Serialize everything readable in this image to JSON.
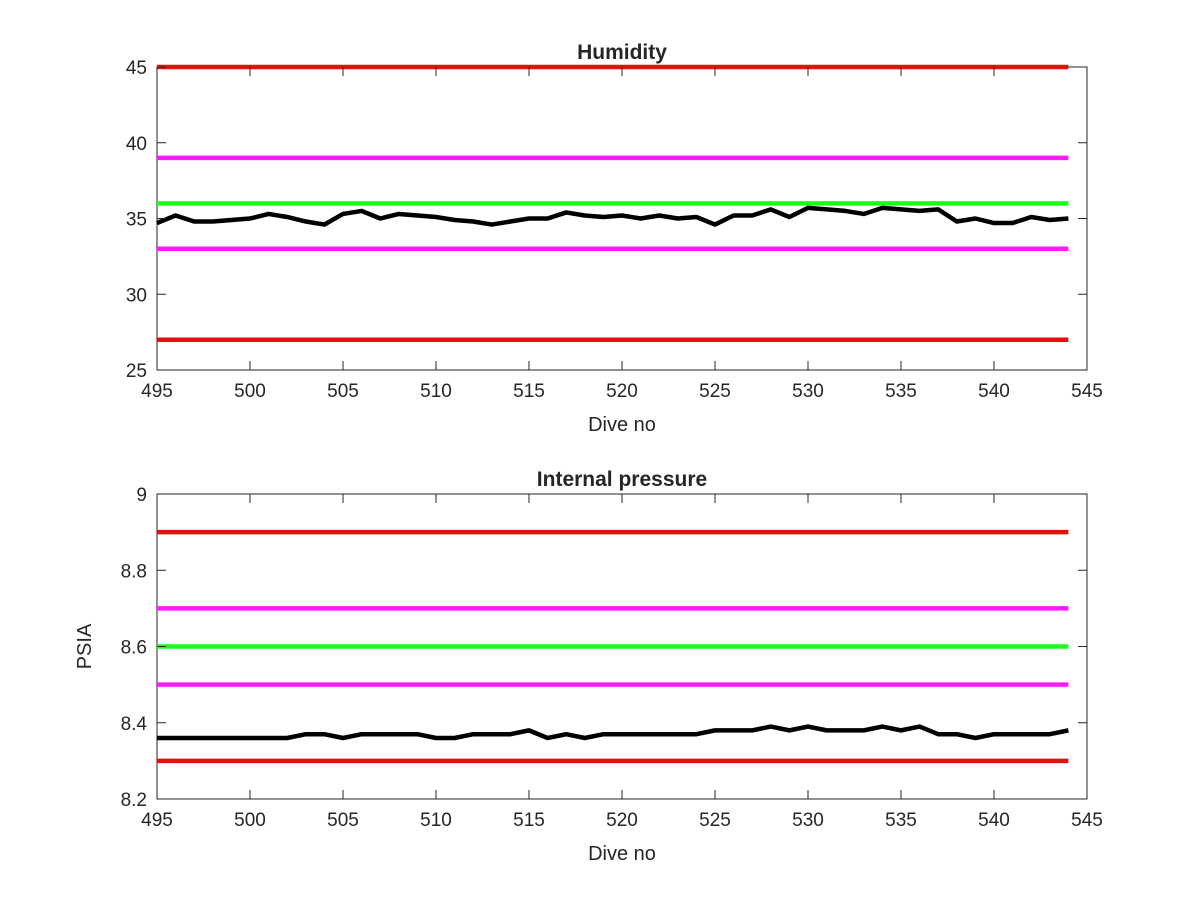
{
  "chart_data": [
    {
      "type": "line",
      "title": "Humidity",
      "xlabel": "Dive no",
      "ylabel": "",
      "xlim": [
        495,
        545
      ],
      "ylim": [
        25,
        45
      ],
      "xticks": [
        495,
        500,
        505,
        510,
        515,
        520,
        525,
        530,
        535,
        540,
        545
      ],
      "yticks": [
        25,
        30,
        35,
        40,
        45
      ],
      "grid": false,
      "x": [
        495,
        496,
        497,
        498,
        499,
        500,
        501,
        502,
        503,
        504,
        505,
        506,
        507,
        508,
        509,
        510,
        511,
        512,
        513,
        514,
        515,
        516,
        517,
        518,
        519,
        520,
        521,
        522,
        523,
        524,
        525,
        526,
        527,
        528,
        529,
        530,
        531,
        532,
        533,
        534,
        535,
        536,
        537,
        538,
        539,
        540,
        541,
        542,
        543,
        544
      ],
      "series": [
        {
          "color": "#000000",
          "values": [
            34.7,
            35.2,
            34.8,
            34.8,
            34.9,
            35.0,
            35.3,
            35.1,
            34.8,
            34.6,
            35.3,
            35.5,
            35.0,
            35.3,
            35.2,
            35.1,
            34.9,
            34.8,
            34.6,
            34.8,
            35.0,
            35.0,
            35.4,
            35.2,
            35.1,
            35.2,
            35.0,
            35.2,
            35.0,
            35.1,
            34.6,
            35.2,
            35.2,
            35.6,
            35.1,
            35.7,
            35.6,
            35.5,
            35.3,
            35.7,
            35.6,
            35.5,
            35.6,
            34.8,
            35.0,
            34.7,
            34.7,
            35.1,
            34.9,
            35.0
          ]
        }
      ],
      "reference_lines": [
        {
          "value": 45,
          "color": "#e0130f"
        },
        {
          "value": 39,
          "color": "#ff1aff"
        },
        {
          "value": 36,
          "color": "#1aff1a"
        },
        {
          "value": 33,
          "color": "#ff1aff"
        },
        {
          "value": 27,
          "color": "#e0130f"
        }
      ]
    },
    {
      "type": "line",
      "title": "Internal pressure",
      "xlabel": "Dive no",
      "ylabel": "PSIA",
      "xlim": [
        495,
        545
      ],
      "ylim": [
        8.2,
        9
      ],
      "xticks": [
        495,
        500,
        505,
        510,
        515,
        520,
        525,
        530,
        535,
        540,
        545
      ],
      "yticks": [
        8.2,
        8.4,
        8.6,
        8.8,
        9
      ],
      "grid": false,
      "x": [
        495,
        496,
        497,
        498,
        499,
        500,
        501,
        502,
        503,
        504,
        505,
        506,
        507,
        508,
        509,
        510,
        511,
        512,
        513,
        514,
        515,
        516,
        517,
        518,
        519,
        520,
        521,
        522,
        523,
        524,
        525,
        526,
        527,
        528,
        529,
        530,
        531,
        532,
        533,
        534,
        535,
        536,
        537,
        538,
        539,
        540,
        541,
        542,
        543,
        544
      ],
      "series": [
        {
          "color": "#000000",
          "values": [
            8.36,
            8.36,
            8.36,
            8.36,
            8.36,
            8.36,
            8.36,
            8.36,
            8.37,
            8.37,
            8.36,
            8.37,
            8.37,
            8.37,
            8.37,
            8.36,
            8.36,
            8.37,
            8.37,
            8.37,
            8.38,
            8.36,
            8.37,
            8.36,
            8.37,
            8.37,
            8.37,
            8.37,
            8.37,
            8.37,
            8.38,
            8.38,
            8.38,
            8.39,
            8.38,
            8.39,
            8.38,
            8.38,
            8.38,
            8.39,
            8.38,
            8.39,
            8.37,
            8.37,
            8.36,
            8.37,
            8.37,
            8.37,
            8.37,
            8.38
          ]
        }
      ],
      "reference_lines": [
        {
          "value": 8.9,
          "color": "#e0130f"
        },
        {
          "value": 8.7,
          "color": "#ff1aff"
        },
        {
          "value": 8.6,
          "color": "#1aff1a"
        },
        {
          "value": 8.5,
          "color": "#ff1aff"
        },
        {
          "value": 8.3,
          "color": "#e0130f"
        }
      ]
    }
  ]
}
